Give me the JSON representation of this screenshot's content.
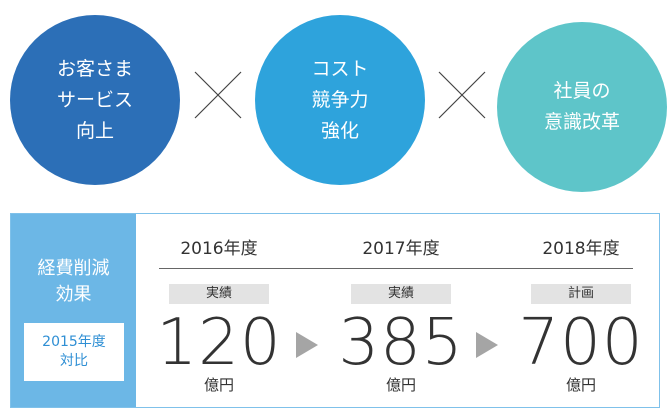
{
  "circles": [
    {
      "lines": [
        "お客さま",
        "サービス",
        "向上"
      ]
    },
    {
      "lines": [
        "コスト",
        "競争力",
        "強化"
      ]
    },
    {
      "lines": [
        "社員の",
        "意識改革"
      ]
    }
  ],
  "panel": {
    "title": [
      "経費削減",
      "効果"
    ],
    "note": [
      "2015年度",
      "対比"
    ]
  },
  "columns": [
    {
      "year": "2016年度",
      "label": "実績",
      "value": 120,
      "unit": "億円"
    },
    {
      "year": "2017年度",
      "label": "実績",
      "value": 385,
      "unit": "億円"
    },
    {
      "year": "2018年度",
      "label": "計画",
      "value": 700,
      "unit": "億円"
    }
  ]
}
